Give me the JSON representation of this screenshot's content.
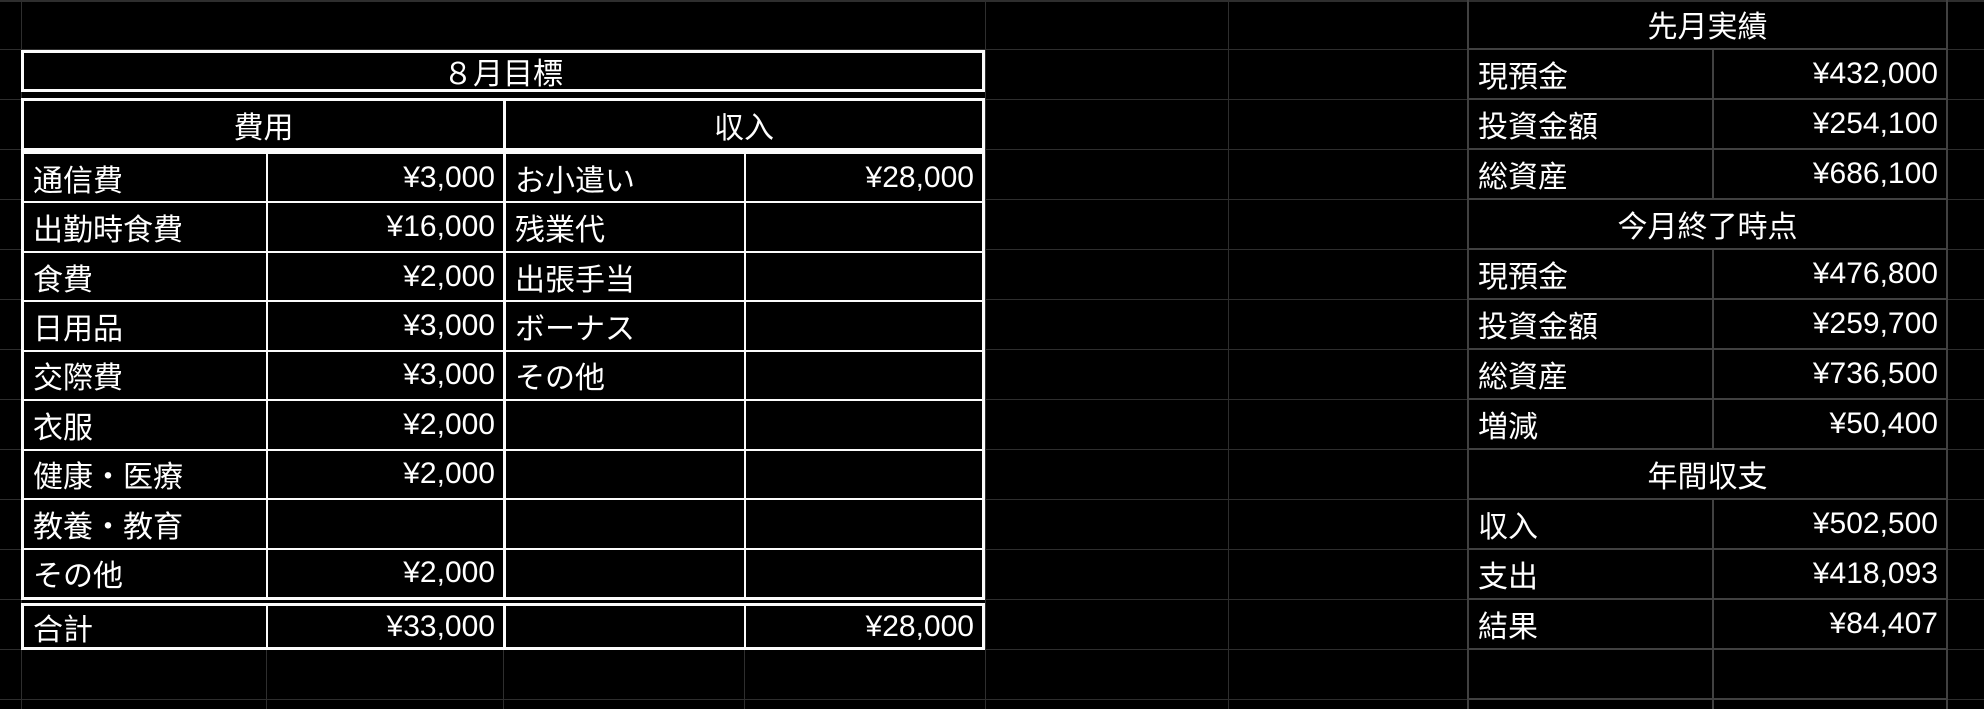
{
  "left_table": {
    "title": "８月目標",
    "columns": [
      "費用",
      "収入"
    ],
    "rows": [
      {
        "e_label": "通信費",
        "e_value": "¥3,000",
        "i_label": "お小遣い",
        "i_value": "¥28,000"
      },
      {
        "e_label": "出勤時食費",
        "e_value": "¥16,000",
        "i_label": "残業代",
        "i_value": ""
      },
      {
        "e_label": "食費",
        "e_value": "¥2,000",
        "i_label": "出張手当",
        "i_value": ""
      },
      {
        "e_label": "日用品",
        "e_value": "¥3,000",
        "i_label": "ボーナス",
        "i_value": ""
      },
      {
        "e_label": "交際費",
        "e_value": "¥3,000",
        "i_label": "その他",
        "i_value": ""
      },
      {
        "e_label": "衣服",
        "e_value": "¥2,000",
        "i_label": "",
        "i_value": ""
      },
      {
        "e_label": "健康・医療",
        "e_value": "¥2,000",
        "i_label": "",
        "i_value": ""
      },
      {
        "e_label": "教養・教育",
        "e_value": "",
        "i_label": "",
        "i_value": ""
      },
      {
        "e_label": "その他",
        "e_value": "¥2,000",
        "i_label": "",
        "i_value": ""
      }
    ],
    "total": {
      "label": "合計",
      "expense_value": "¥33,000",
      "income_label": "",
      "income_value": "¥28,000"
    }
  },
  "summary": {
    "sections": [
      {
        "header": "先月実績",
        "rows": [
          [
            "現預金",
            "¥432,000"
          ],
          [
            "投資金額",
            "¥254,100"
          ],
          [
            "総資産",
            "¥686,100"
          ]
        ]
      },
      {
        "header": "今月終了時点",
        "rows": [
          [
            "現預金",
            "¥476,800"
          ],
          [
            "投資金額",
            "¥259,700"
          ],
          [
            "総資産",
            "¥736,500"
          ],
          [
            "増減",
            "¥50,400"
          ]
        ]
      },
      {
        "header": "年間収支",
        "rows": [
          [
            "収入",
            "¥502,500"
          ],
          [
            "支出",
            "¥418,093"
          ],
          [
            "結果",
            "¥84,407"
          ]
        ]
      }
    ]
  },
  "colors": {
    "background": "#000000",
    "text": "#ffffff",
    "table_border": "#fbfbfb",
    "grid_line": "#2e2e2e",
    "panel_grid_line": "#414141"
  }
}
